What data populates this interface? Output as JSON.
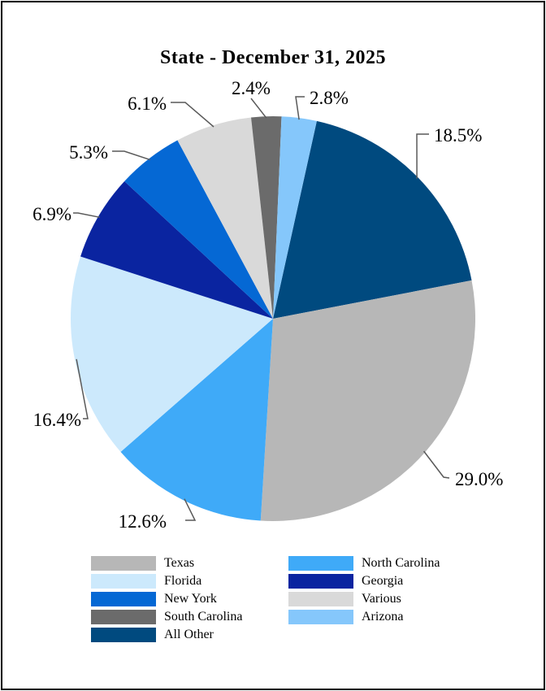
{
  "chart_data": {
    "type": "pie",
    "title": "State - December 31, 2025",
    "slices": [
      {
        "name": "All Other",
        "value": 18.5,
        "label": "18.5%",
        "color": "#004a7f"
      },
      {
        "name": "Texas",
        "value": 29.0,
        "label": "29.0%",
        "color": "#b7b7b7"
      },
      {
        "name": "North Carolina",
        "value": 12.6,
        "label": "12.6%",
        "color": "#3faaf8"
      },
      {
        "name": "Florida",
        "value": 16.4,
        "label": "16.4%",
        "color": "#cce9fc"
      },
      {
        "name": "Georgia",
        "value": 6.9,
        "label": "6.9%",
        "color": "#0a24a0"
      },
      {
        "name": "New York",
        "value": 5.3,
        "label": "5.3%",
        "color": "#0568d4"
      },
      {
        "name": "Various",
        "value": 6.1,
        "label": "6.1%",
        "color": "#d9d9d9"
      },
      {
        "name": "South Carolina",
        "value": 2.4,
        "label": "2.4%",
        "color": "#6b6b6b"
      },
      {
        "name": "Arizona",
        "value": 2.8,
        "label": "2.8%",
        "color": "#85c7fb"
      }
    ],
    "legend": [
      {
        "name": "Texas",
        "color": "#b7b7b7"
      },
      {
        "name": "North Carolina",
        "color": "#3faaf8"
      },
      {
        "name": "Florida",
        "color": "#cce9fc"
      },
      {
        "name": "Georgia",
        "color": "#0a24a0"
      },
      {
        "name": "New York",
        "color": "#0568d4"
      },
      {
        "name": "Various",
        "color": "#d9d9d9"
      },
      {
        "name": "South Carolina",
        "color": "#6b6b6b"
      },
      {
        "name": "Arizona",
        "color": "#85c7fb"
      },
      {
        "name": "All Other",
        "color": "#004a7f"
      }
    ],
    "legend_position": "bottom"
  }
}
